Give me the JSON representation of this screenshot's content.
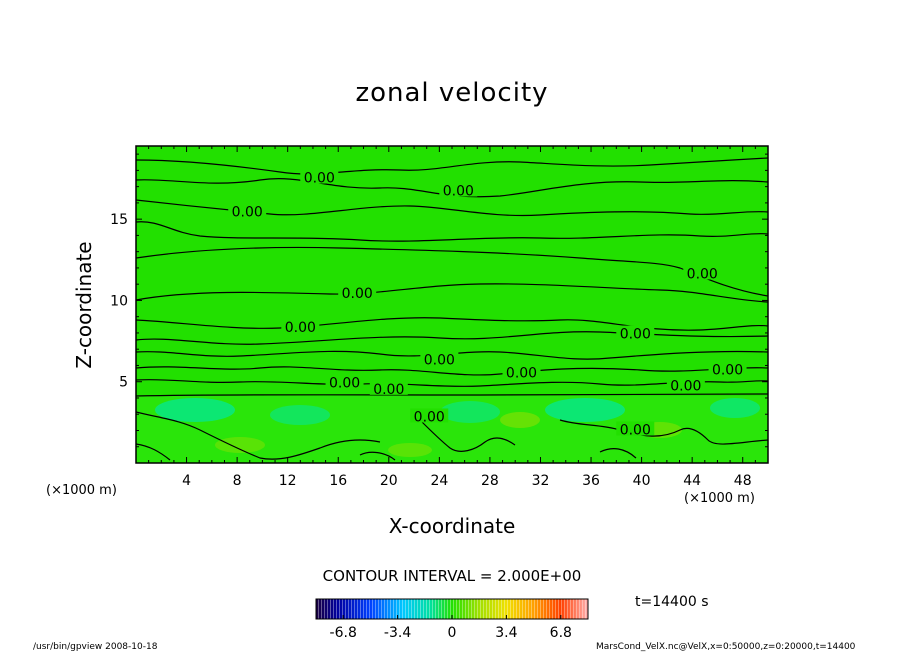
{
  "chart_data": {
    "type": "heatmap",
    "title": "zonal velocity",
    "xlabel": "X-coordinate",
    "ylabel": "Z-coordinate",
    "x_unit": "(×1000 m)",
    "z_unit": "(×1000 m)",
    "xlim": [
      0,
      50
    ],
    "ylim": [
      0,
      19.5
    ],
    "x_ticks": [
      4,
      8,
      12,
      16,
      20,
      24,
      28,
      32,
      36,
      40,
      44,
      48
    ],
    "y_ticks": [
      5,
      10,
      15
    ],
    "contour_interval_text": "CONTOUR INTERVAL = 2.000E+00",
    "contour_labels": [
      {
        "text": "0.00",
        "x": 14.5,
        "y": 17.5
      },
      {
        "text": "0.00",
        "x": 25.5,
        "y": 16.7
      },
      {
        "text": "0.00",
        "x": 8.8,
        "y": 15.4
      },
      {
        "text": "0.00",
        "x": 44.8,
        "y": 11.6
      },
      {
        "text": "0.00",
        "x": 17.5,
        "y": 10.4
      },
      {
        "text": "0.00",
        "x": 13.0,
        "y": 8.3
      },
      {
        "text": "0.00",
        "x": 39.5,
        "y": 7.9
      },
      {
        "text": "0.00",
        "x": 24.0,
        "y": 6.3
      },
      {
        "text": "0.00",
        "x": 30.5,
        "y": 5.5
      },
      {
        "text": "0.00",
        "x": 46.8,
        "y": 5.7
      },
      {
        "text": "0.00",
        "x": 16.5,
        "y": 4.9
      },
      {
        "text": "0.00",
        "x": 20.0,
        "y": 4.5
      },
      {
        "text": "0.00",
        "x": 43.5,
        "y": 4.7
      },
      {
        "text": "0.00",
        "x": 23.2,
        "y": 2.8
      },
      {
        "text": "0.00",
        "x": 39.5,
        "y": 2.0
      }
    ],
    "colorbar": {
      "min": -8.5,
      "max": 8.5,
      "tick_labels": [
        "-6.8",
        "-3.4",
        "0",
        "3.4",
        "6.8"
      ],
      "tick_values": [
        -6.8,
        -3.4,
        0,
        3.4,
        6.8
      ]
    },
    "field_description": "near-zero velocity (green) above ~4.5 km; weak positive/negative cells near surface"
  },
  "time_label": "t=14400  s",
  "footer_left": "/usr/bin/gpview   2008-10-18",
  "footer_right": "MarsCond_VelX.nc@VelX,x=0:50000,z=0:20000,t=14400",
  "colors": {
    "field_green": "#22e000",
    "contour": "#000000"
  }
}
